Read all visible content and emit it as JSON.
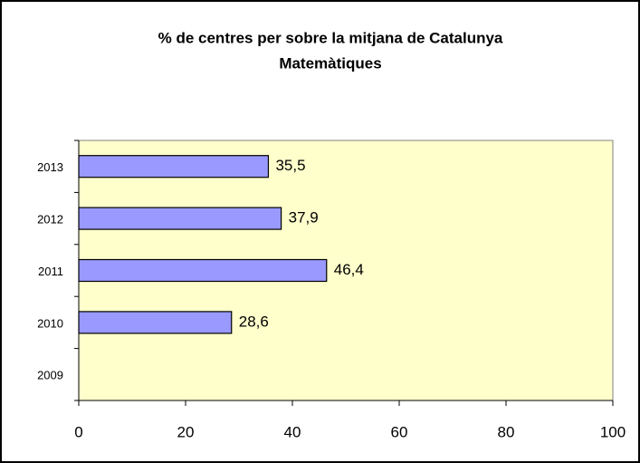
{
  "chart_data": {
    "type": "bar",
    "orientation": "horizontal",
    "title": "% de centres per sobre la mitjana de Catalunya",
    "subtitle": "Matemàtiques",
    "categories": [
      "2013",
      "2012",
      "2011",
      "2010",
      "2009"
    ],
    "values": [
      35.5,
      37.9,
      46.4,
      28.6,
      null
    ],
    "value_labels": [
      "35,5",
      "37,9",
      "46,4",
      "28,6",
      null
    ],
    "color": "#9999ff",
    "plot_background": "#ffffcc",
    "xlim": [
      0,
      100
    ],
    "xticks": [
      0,
      20,
      40,
      60,
      80,
      100
    ]
  }
}
